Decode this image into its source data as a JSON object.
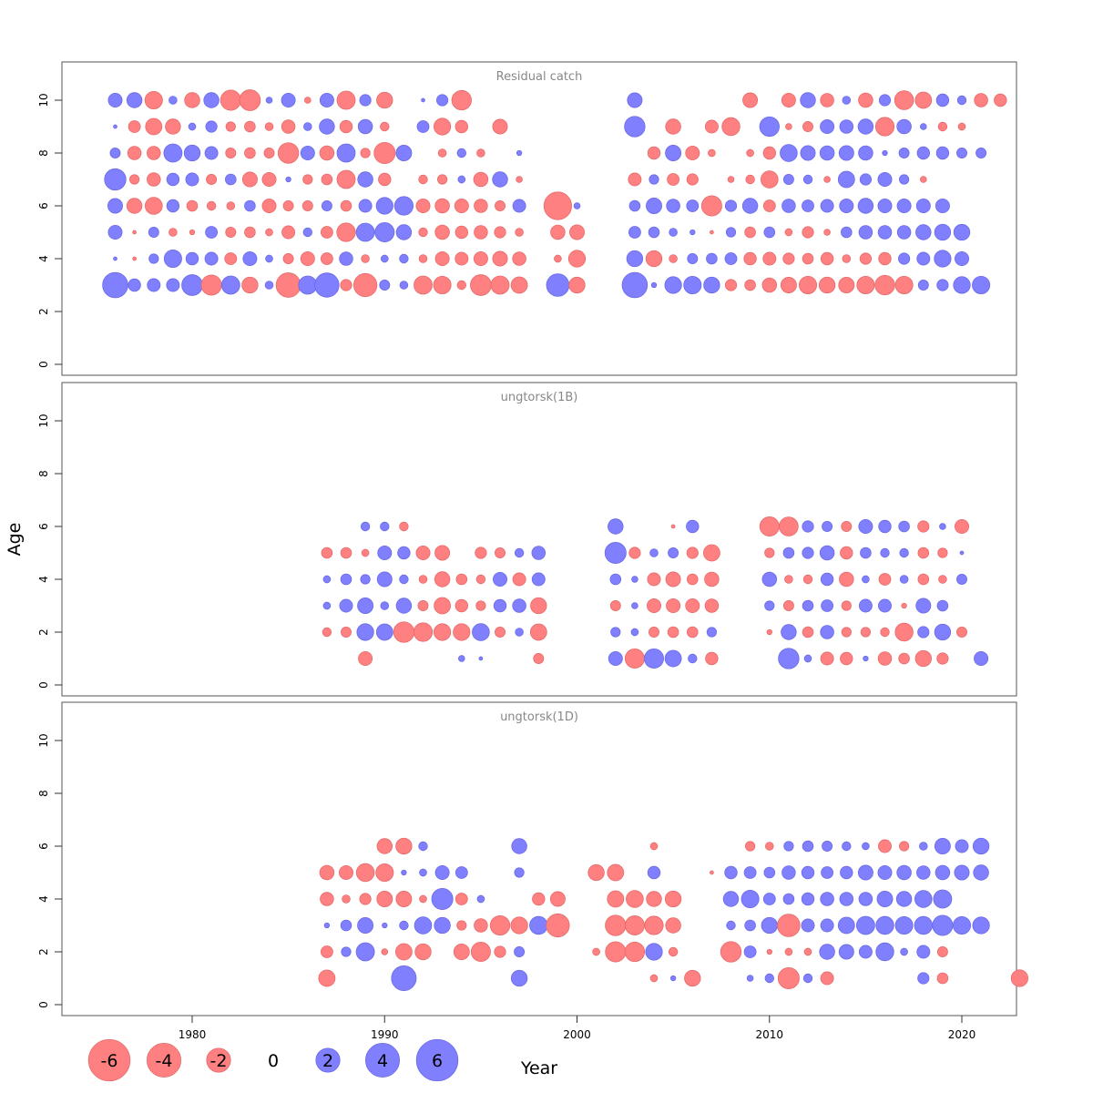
{
  "chart_data": {
    "type": "scatter",
    "subtype": "bubble",
    "xlabel": "Year",
    "ylabel": "Age",
    "xlim": [
      1972.4,
      1989.6
    ],
    "x_ticks": [
      1980,
      1990,
      2000,
      2010,
      2020
    ],
    "y_ticks": [
      0,
      2,
      4,
      6,
      8,
      10
    ],
    "ylim": [
      -0.5,
      11.4
    ],
    "colors": {
      "positive": "#8080ff",
      "negative": "#ff8080"
    },
    "legend": {
      "placement": "bottom",
      "values": [
        -6,
        -4,
        -2,
        0,
        2,
        4,
        6
      ],
      "labels": [
        "-6",
        "-4",
        "-2",
        "0",
        "2",
        "4",
        "6"
      ]
    },
    "panels": [
      {
        "title": "Residual catch",
        "x_start": 1976,
        "ages": [
          10,
          9,
          8,
          7,
          6,
          5,
          4,
          3
        ],
        "residuals": {
          "10": [
            1.5,
            1.8,
            -2.4,
            0.5,
            -1.8,
            1.8,
            -3.2,
            -3.4,
            0.3,
            1.5,
            -0.3,
            1.5,
            -2.6,
            1.0,
            -2.0,
            null,
            0.1,
            1.0,
            -3.0,
            null,
            null,
            null,
            null,
            null,
            null,
            null,
            null,
            1.7,
            null,
            null,
            null,
            null,
            null,
            -1.7,
            null,
            -1.5,
            1.8,
            -1.4,
            0.5,
            -1.6,
            1.0,
            -2.8,
            -2.1,
            1.2,
            0.6,
            -1.4,
            -1.2
          ],
          "9": [
            0.1,
            -1.1,
            -2.1,
            -1.8,
            0.4,
            1.0,
            -0.7,
            -0.9,
            -0.5,
            -1.4,
            0.5,
            1.8,
            -1.2,
            1.6,
            -0.6,
            null,
            1.1,
            -2.2,
            -1.2,
            null,
            -1.7,
            null,
            null,
            null,
            null,
            null,
            null,
            3.3,
            null,
            -1.8,
            null,
            -1.3,
            -2.5,
            null,
            3.0,
            -0.3,
            -0.8,
            1.5,
            1.4,
            1.8,
            -2.7,
            1.6,
            0.3,
            -0.6,
            -0.4
          ],
          "8": [
            0.8,
            -1.4,
            -1.4,
            2.6,
            2.0,
            1.3,
            -0.8,
            -0.9,
            -0.8,
            -3.3,
            1.5,
            -1.6,
            2.6,
            -0.7,
            -3.5,
            1.9,
            null,
            -0.5,
            0.6,
            -0.5,
            null,
            0.2,
            null,
            null,
            null,
            null,
            null,
            null,
            -1.2,
            1.9,
            -1.5,
            -0.4,
            null,
            -0.4,
            -1.2,
            2.3,
            1.7,
            1.6,
            1.7,
            1.6,
            0.2,
            0.8,
            1.2,
            1.2,
            0.8,
            0.8
          ],
          "7": [
            3.6,
            -0.7,
            -1.4,
            1.2,
            1.3,
            -0.8,
            0.9,
            -1.7,
            -1.5,
            0.2,
            -0.7,
            -0.9,
            -2.6,
            1.8,
            -1.2,
            null,
            -0.6,
            -0.7,
            0.4,
            -1.6,
            1.8,
            -0.3,
            null,
            null,
            null,
            null,
            null,
            -1.3,
            0.7,
            -1.1,
            -1.0,
            null,
            -0.3,
            -0.6,
            -2.3,
            0.8,
            0.6,
            -0.3,
            2.1,
            1.0,
            1.5,
            0.7,
            -0.3
          ],
          "6": [
            1.7,
            -1.8,
            -2.3,
            1.2,
            -0.9,
            -0.6,
            -0.5,
            0.9,
            -1.5,
            -0.8,
            -0.8,
            0.8,
            -0.9,
            1.3,
            2.2,
            2.7,
            -1.5,
            -1.6,
            -1.5,
            -1.4,
            -0.8,
            1.3,
            null,
            -6.0,
            0.3,
            null,
            null,
            0.9,
            1.9,
            1.4,
            1.1,
            -3.2,
            1.0,
            1.8,
            -1.1,
            1.4,
            1.1,
            1.3,
            1.5,
            1.8,
            1.5,
            1.5,
            1.5,
            1.5
          ],
          "5": [
            1.5,
            -0.1,
            0.8,
            -0.5,
            -0.2,
            1.1,
            -0.8,
            -0.9,
            -0.4,
            -1.3,
            0.6,
            -1.1,
            -2.7,
            2.6,
            2.9,
            1.8,
            -0.6,
            -1.6,
            -1.2,
            -1.4,
            -1.0,
            -0.5,
            null,
            -1.6,
            -1.7,
            null,
            null,
            1.1,
            0.9,
            0.5,
            0.2,
            -0.1,
            0.7,
            -0.9,
            0.9,
            -0.4,
            -1.0,
            -0.3,
            0.9,
            1.4,
            1.4,
            1.4,
            1.8,
            2.0,
            2.0
          ],
          "4": [
            0.1,
            -0.1,
            0.7,
            2.4,
            1.2,
            1.3,
            -1.1,
            1.5,
            0.4,
            -0.8,
            -1.5,
            -1.1,
            1.4,
            -0.5,
            0.4,
            0.6,
            -0.5,
            -1.5,
            -1.3,
            -1.5,
            -1.7,
            -1.4,
            null,
            -0.4,
            -2.2,
            null,
            null,
            2.0,
            -2.0,
            -0.5,
            0.8,
            0.9,
            1.1,
            -1.2,
            -1.3,
            -1.0,
            -0.9,
            -1.2,
            -0.5,
            -1.0,
            -1.2,
            1.0,
            1.3,
            2.2,
            1.5
          ],
          "3": [
            5.0,
            1.2,
            1.3,
            1.3,
            3.4,
            -3.2,
            2.6,
            -2.0,
            0.5,
            -4.7,
            2.6,
            4.6,
            -1.0,
            -4.2,
            0.8,
            0.5,
            -2.6,
            -2.4,
            -0.6,
            -3.4,
            -2.6,
            -2.1,
            null,
            4.0,
            -2.0,
            null,
            null,
            5.0,
            0.2,
            2.2,
            2.4,
            2.0,
            -1.0,
            -0.9,
            -1.6,
            -1.9,
            -2.4,
            -2.0,
            -1.9,
            -2.4,
            -3.0,
            -2.4,
            0.8,
            1.0,
            2.2,
            2.4
          ]
        }
      },
      {
        "title": "ungtorsk(1B)",
        "x_start": 1987,
        "ages": [
          6,
          5,
          4,
          3,
          2,
          1
        ],
        "residuals": {
          "6": [
            null,
            null,
            0.6,
            0.6,
            -0.6,
            null,
            null,
            null,
            null,
            null,
            null,
            null,
            null,
            null,
            null,
            1.8,
            null,
            null,
            -0.1,
            1.2,
            null,
            null,
            null,
            -2.9,
            -2.8,
            1.0,
            0.8,
            -0.8,
            1.5,
            1.2,
            0.9,
            -1.0,
            0.3,
            -1.5
          ],
          "5": [
            -0.9,
            -0.9,
            -0.4,
            1.5,
            1.2,
            -1.5,
            -1.7,
            null,
            -1.0,
            -0.8,
            0.6,
            1.4,
            null,
            null,
            null,
            3.5,
            -1.0,
            0.5,
            0.8,
            -1.0,
            -2.1,
            null,
            null,
            -0.7,
            0.9,
            1.0,
            1.6,
            -1.2,
            0.9,
            0.6,
            0.6,
            -0.9,
            -0.7,
            0.1
          ],
          "4": [
            0.4,
            0.9,
            0.7,
            1.7,
            0.6,
            -0.5,
            -1.8,
            -0.9,
            -0.6,
            1.5,
            -1.3,
            1.3,
            null,
            null,
            null,
            0.9,
            0.3,
            -1.3,
            -1.7,
            -0.9,
            -1.6,
            null,
            null,
            1.6,
            -0.5,
            -0.6,
            1.2,
            -1.6,
            0.4,
            -1.1,
            0.5,
            -0.9,
            -0.5,
            0.8
          ],
          "3": [
            0.4,
            1.3,
            1.9,
            0.5,
            1.8,
            -0.8,
            -2.1,
            -1.2,
            -0.7,
            1.2,
            1.4,
            -2.0,
            null,
            null,
            null,
            -0.8,
            0.3,
            -1.5,
            -1.5,
            -1.5,
            -1.4,
            null,
            null,
            0.7,
            -0.8,
            0.9,
            1.1,
            -0.7,
            1.3,
            1.3,
            -0.2,
            1.7,
            0.9
          ],
          "2": [
            -0.6,
            -0.8,
            2.2,
            2.1,
            -3.3,
            -2.7,
            -2.2,
            -2.2,
            2.3,
            -0.8,
            0.5,
            -2.1,
            null,
            null,
            null,
            0.7,
            0.4,
            -0.8,
            -0.9,
            -0.9,
            0.7,
            null,
            null,
            -0.2,
            1.8,
            -0.9,
            1.4,
            -0.7,
            -0.7,
            -0.6,
            -2.5,
            1.0,
            2.0,
            -0.8
          ],
          "1": [
            null,
            null,
            -1.5,
            null,
            null,
            null,
            null,
            0.3,
            0.1,
            null,
            null,
            -0.8,
            null,
            null,
            null,
            1.5,
            -2.9,
            2.9,
            2.1,
            0.6,
            -1.2,
            null,
            null,
            null,
            3.3,
            0.4,
            -1.3,
            -1.2,
            0.2,
            -1.4,
            -0.9,
            -2.0,
            -1.0,
            null,
            1.5
          ]
        }
      },
      {
        "title": "ungtorsk(1D)",
        "x_start": 1987,
        "ages": [
          6,
          5,
          4,
          3,
          2,
          1
        ],
        "residuals": {
          "6": [
            null,
            null,
            null,
            -1.8,
            -2.0,
            0.6,
            null,
            null,
            null,
            null,
            1.8,
            null,
            null,
            null,
            null,
            null,
            null,
            -0.4,
            null,
            null,
            null,
            null,
            -0.7,
            -0.5,
            0.7,
            0.9,
            0.8,
            0.6,
            0.4,
            -1.3,
            -0.7,
            0.5,
            1.9,
            1.3,
            2.0
          ],
          "5": [
            -1.6,
            -1.5,
            -2.5,
            -2.4,
            0.2,
            0.4,
            1.5,
            1.1,
            null,
            null,
            0.7,
            null,
            null,
            null,
            -2.0,
            -2.1,
            null,
            1.2,
            null,
            null,
            -0.1,
            1.2,
            1.1,
            0.9,
            1.4,
            1.2,
            1.1,
            1.2,
            1.7,
            1.5,
            1.6,
            1.4,
            1.6,
            1.7,
            1.8
          ],
          "4": [
            -1.4,
            -0.5,
            -1.0,
            -1.9,
            -1.9,
            -0.4,
            3.5,
            -1.1,
            0.4,
            null,
            null,
            -1.2,
            -1.7,
            null,
            null,
            -2.1,
            -2.3,
            -1.8,
            -2.0,
            null,
            null,
            1.8,
            2.4,
            1.1,
            0.9,
            1.2,
            1.4,
            1.4,
            1.4,
            1.9,
            1.8,
            2.3,
            2.6
          ],
          "3": [
            0.2,
            0.9,
            1.9,
            0.2,
            0.6,
            2.3,
            2.0,
            -0.7,
            -1.4,
            -3.0,
            -2.2,
            2.5,
            -4.2,
            null,
            null,
            -3.3,
            -2.9,
            -2.7,
            -1.8,
            null,
            null,
            0.6,
            0.9,
            2.0,
            -4.0,
            1.3,
            1.3,
            2.1,
            2.6,
            2.5,
            2.4,
            2.5,
            3.2,
            2.4,
            2.2
          ],
          "2": [
            -1.1,
            0.7,
            2.6,
            -0.3,
            -2.1,
            -2.0,
            null,
            -1.9,
            -2.9,
            -1.0,
            0.8,
            null,
            null,
            null,
            -0.4,
            -3.2,
            -3.0,
            2.2,
            -0.6,
            null,
            null,
            -3.3,
            1.1,
            -0.2,
            -0.4,
            -0.4,
            1.8,
            1.7,
            1.3,
            2.5,
            0.4,
            1.3,
            -0.8
          ],
          "1": [
            -2.1,
            null,
            null,
            null,
            4.8,
            null,
            null,
            null,
            null,
            null,
            2.0,
            null,
            null,
            null,
            null,
            null,
            null,
            -0.4,
            0.2,
            -2.0,
            null,
            null,
            0.3,
            0.6,
            -3.5,
            0.6,
            -1.3,
            null,
            null,
            null,
            null,
            1.0,
            -0.9,
            null,
            null,
            null,
            -2.2
          ]
        }
      }
    ]
  }
}
